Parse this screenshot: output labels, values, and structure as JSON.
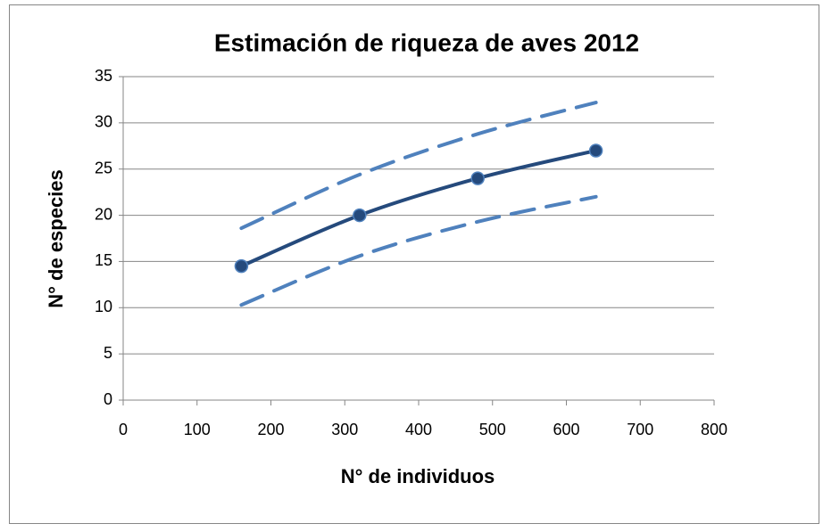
{
  "chart_data": {
    "type": "line",
    "title": "Estimación de riqueza de aves 2012",
    "x_label": "N° de individuos",
    "y_label": "N° de especies",
    "x": [
      160,
      320,
      480,
      640
    ],
    "series": [
      {
        "color": "#4f81bd",
        "dashed": true,
        "markers": false,
        "values": [
          18.6,
          24.4,
          28.8,
          32.2
        ]
      },
      {
        "color": "#4f81bd",
        "dashed": true,
        "markers": false,
        "values": [
          10.3,
          15.6,
          19.3,
          22
        ]
      },
      {
        "color": "#254a7c",
        "dashed": false,
        "markers": true,
        "values": [
          14.5,
          20,
          24,
          27
        ]
      }
    ],
    "xlim": [
      0,
      800
    ],
    "xticks": [
      0,
      100,
      200,
      300,
      400,
      500,
      600,
      700,
      800
    ],
    "ylim": [
      0,
      35
    ],
    "yticks": [
      0,
      5,
      10,
      15,
      20,
      25,
      30,
      35
    ],
    "grid": true,
    "smooth": true
  }
}
